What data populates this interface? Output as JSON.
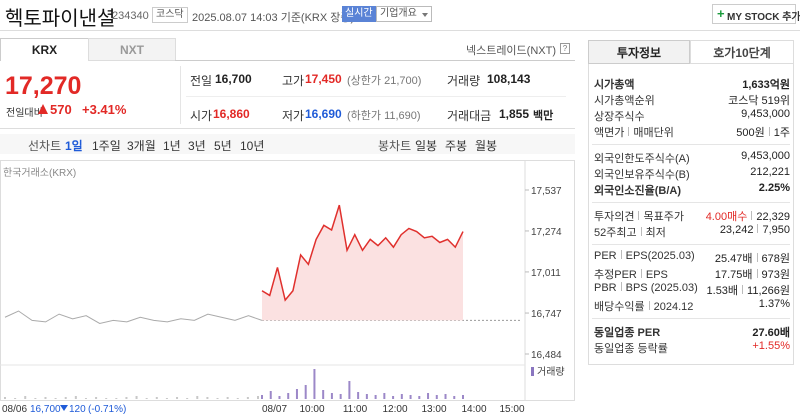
{
  "header": {
    "title": "헥토파이낸셜",
    "code": "234340",
    "market": "코스닥",
    "timestamp": "2025.08.07 14:03 기준(KRX 장중)",
    "realtime": "실시간",
    "company_overview": "기업개요",
    "my_stock": "MY STOCK 추가"
  },
  "exchange_tabs": [
    "KRX",
    "NXT"
  ],
  "nxt_link": "넥스트레이드(NXT)",
  "quote": {
    "price": "17,270",
    "change_label": "전일대비",
    "change": "570",
    "change_rate": "+3.41%"
  },
  "summary": [
    {
      "label": "전일",
      "value": "16,700"
    },
    {
      "label": "고가",
      "value": "17,450",
      "note": "(상한가 21,700)"
    },
    {
      "label": "거래량",
      "value": "108,143"
    },
    {
      "label": "시가",
      "value": "16,860"
    },
    {
      "label": "저가",
      "value": "16,690",
      "note": "(하한가 11,690)"
    },
    {
      "label": "거래대금",
      "value": "1,855",
      "note": "백만"
    }
  ],
  "chart_tabs": {
    "line_label": "선차트",
    "line": [
      "1일",
      "1주일",
      "3개월",
      "1년",
      "3년",
      "5년",
      "10년"
    ],
    "candle_label": "봉차트",
    "candle": [
      "일봉",
      "주봉",
      "월봉"
    ]
  },
  "chart": {
    "source": "한국거래소(KRX)",
    "ylim": [
      16484,
      17537
    ],
    "yticks": [
      {
        "value": 17537,
        "label": "17,537"
      },
      {
        "value": 17274,
        "label": "17,274"
      },
      {
        "value": 17011,
        "label": "17,011"
      },
      {
        "value": 16747,
        "label": "16,747"
      },
      {
        "value": 16484,
        "label": "16,484"
      }
    ],
    "xlabels": [
      "08/06",
      "08/07",
      "10:00",
      "11:00",
      "12:00",
      "13:00",
      "14:00",
      "15:00"
    ],
    "previous": [
      16720,
      16760,
      16700,
      16690,
      16740,
      16710,
      16730,
      16680,
      16700,
      16690,
      16720,
      16700,
      16690,
      16710,
      16700,
      16740,
      16720,
      16700,
      16730,
      16700
    ],
    "today": [
      16890,
      16860,
      17040,
      16830,
      16890,
      17120,
      17060,
      17220,
      17310,
      17280,
      17440,
      17150,
      17250,
      17150,
      17220,
      17180,
      17230,
      17170,
      17250,
      17290,
      17270,
      17230,
      17240,
      17200,
      17220,
      17170,
      17270
    ],
    "reference": 16700,
    "volume_label": "거래량",
    "volume_previous": [
      2,
      1,
      3,
      1,
      2,
      1,
      2,
      3,
      1,
      2,
      1,
      1,
      2,
      3,
      1,
      2,
      1,
      2,
      1,
      3,
      2,
      1,
      2,
      1,
      2,
      3
    ],
    "volume_today": [
      4,
      8,
      3,
      6,
      10,
      14,
      30,
      9,
      6,
      5,
      18,
      7,
      5,
      4,
      6,
      3,
      5,
      4,
      3,
      6,
      4,
      5,
      3,
      4
    ],
    "prev_close": "16,700",
    "prev_change": "120",
    "prev_rate": "(-0.71%)"
  },
  "info": {
    "tabs": [
      "투자정보",
      "호가10단계"
    ],
    "groups": [
      [
        {
          "label": [
            "시가총액"
          ],
          "value": [
            "1,633억원"
          ]
        },
        {
          "label": [
            "시가총액순위"
          ],
          "value": [
            "코스닥 519위"
          ]
        },
        {
          "label": [
            "상장주식수"
          ],
          "value": [
            "9,453,000"
          ]
        },
        {
          "label": [
            "액면가",
            "매매단위"
          ],
          "value": [
            "500원",
            "1주"
          ]
        }
      ],
      [
        {
          "label": [
            "외국인한도주식수(A)"
          ],
          "value": [
            "9,453,000"
          ]
        },
        {
          "label": [
            "외국인보유주식수(B)"
          ],
          "value": [
            "212,221"
          ]
        },
        {
          "label": [
            "외국인소진율(B/A)"
          ],
          "value": [
            "2.25%"
          ]
        }
      ],
      [
        {
          "label": [
            "투자의견",
            "목표주가"
          ],
          "value": [
            "4.00매수",
            "22,329"
          ]
        },
        {
          "label": [
            "52주최고",
            "최저"
          ],
          "value": [
            "23,242",
            "7,950"
          ]
        }
      ],
      [
        {
          "label": [
            "PER",
            "EPS(2025.03)"
          ],
          "value": [
            "25.47배",
            "678원"
          ]
        },
        {
          "label": [
            "추정PER",
            "EPS"
          ],
          "value": [
            "17.75배",
            "973원"
          ]
        },
        {
          "label": [
            "PBR",
            "BPS (2025.03)"
          ],
          "value": [
            "1.53배",
            "11,266원"
          ]
        },
        {
          "label": [
            "배당수익률",
            "2024.12"
          ],
          "value": [
            "1.37%"
          ]
        }
      ],
      [
        {
          "label": [
            "동일업종 PER"
          ],
          "value": [
            "27.60배"
          ]
        },
        {
          "label": [
            "동일업종 등락률"
          ],
          "value": [
            "+1.55%"
          ]
        }
      ]
    ]
  }
}
